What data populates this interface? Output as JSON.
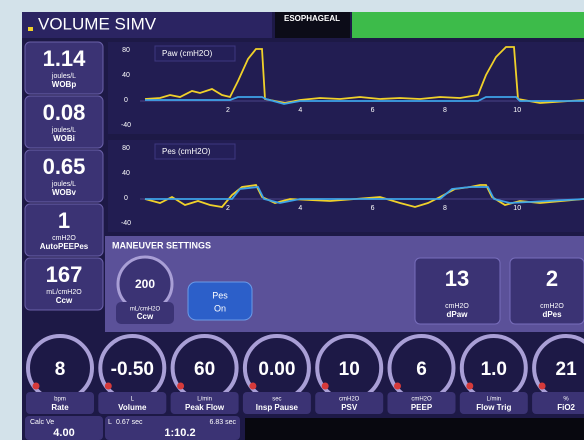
{
  "header": {
    "mode": "VOLUME SIMV",
    "tab": "ESOPHAGEAL"
  },
  "side_tiles": [
    {
      "value": "1.14",
      "unit": "joules/L",
      "label": "WOBp"
    },
    {
      "value": "0.08",
      "unit": "joules/L",
      "label": "WOBi"
    },
    {
      "value": "0.65",
      "unit": "joules/L",
      "label": "WOBv"
    },
    {
      "value": "1",
      "unit": "cmH2O",
      "label": "AutoPEEPes"
    },
    {
      "value": "167",
      "unit": "mL/cmH2O",
      "label": "Ccw"
    }
  ],
  "graphs": [
    {
      "title": "Paw (cmH2O)",
      "y_labels": [
        "80",
        "40",
        "0",
        "-40"
      ],
      "x_labels": [
        "2",
        "4",
        "6",
        "8",
        "10"
      ]
    },
    {
      "title": "Pes (cmH2O)",
      "y_labels": [
        "80",
        "40",
        "0",
        "-40"
      ],
      "x_labels": [
        "2",
        "4",
        "6",
        "8",
        "10"
      ]
    }
  ],
  "maneuver": {
    "title": "MANEUVER SETTINGS",
    "dial": {
      "value": "200",
      "unit": "mL/cmH2O",
      "label": "Ccw"
    },
    "button": {
      "line1": "Pes",
      "line2": "On"
    },
    "tiles": [
      {
        "value": "13",
        "unit": "cmH2O",
        "label": "dPaw"
      },
      {
        "value": "2",
        "unit": "cmH2O",
        "label": "dPes"
      }
    ]
  },
  "dials": [
    {
      "value": "8",
      "unit": "bpm",
      "label": "Rate"
    },
    {
      "value": "-0.50",
      "unit": "L",
      "label": "Volume"
    },
    {
      "value": "60",
      "unit": "L/min",
      "label": "Peak Flow"
    },
    {
      "value": "0.00",
      "unit": "sec",
      "label": "Insp Pause"
    },
    {
      "value": "10",
      "unit": "cmH2O",
      "label": "PSV"
    },
    {
      "value": "6",
      "unit": "cmH2O",
      "label": "PEEP"
    },
    {
      "value": "1.0",
      "unit": "L/min",
      "label": "Flow Trig"
    },
    {
      "value": "21",
      "unit": "%",
      "label": "FiO2"
    }
  ],
  "footer": {
    "calc_label": "Calc Ve",
    "calc_value": "4.00",
    "unit": "L",
    "time1": "0.67 sec",
    "time2": "6.83 sec",
    "ratio": "1:10.2"
  }
}
